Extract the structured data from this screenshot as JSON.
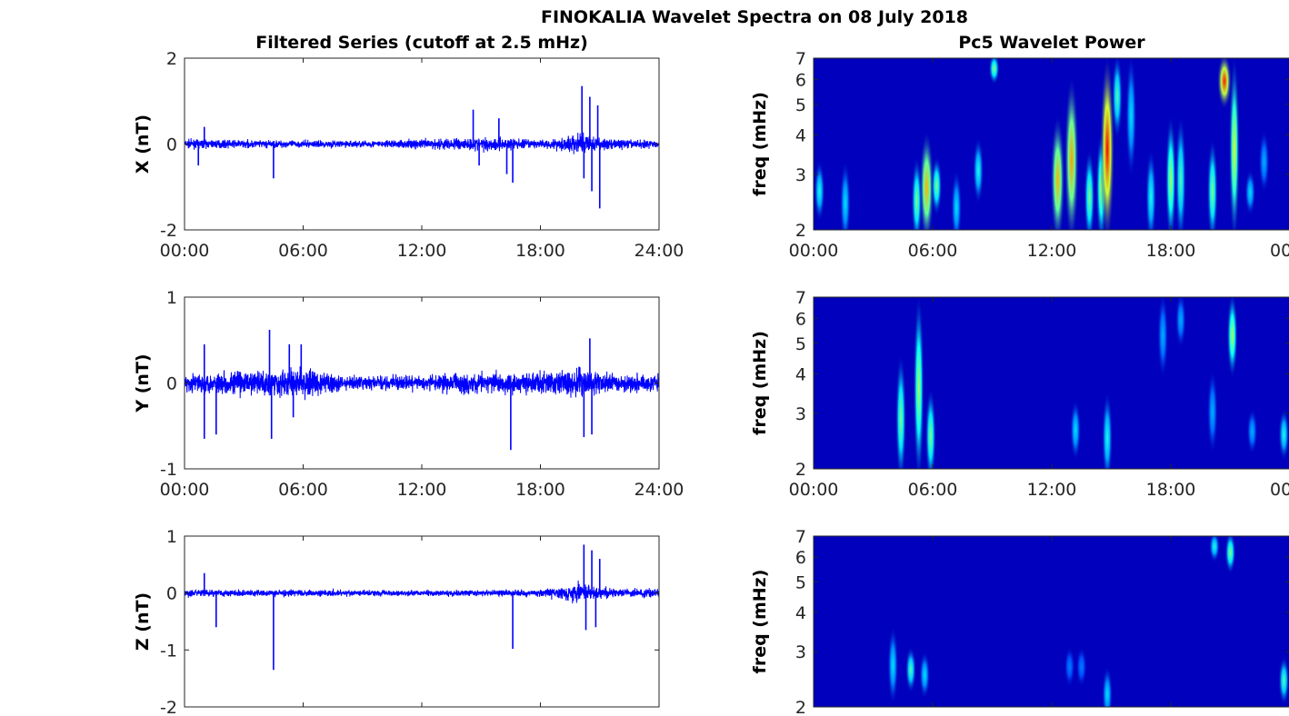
{
  "title": "FINOKALIA Wavelet Spectra on 08 July 2018",
  "chart_data": [
    {
      "type": "line",
      "title": "Filtered Series (cutoff at 2.5 mHz)",
      "ylabel": "X (nT)",
      "xlabel": "",
      "xlim": [
        0,
        24
      ],
      "ylim": [
        -2,
        2
      ],
      "xticks": [
        "00:00",
        "06:00",
        "12:00",
        "18:00",
        "24:00"
      ],
      "yticks": [
        "-2",
        "0",
        "2"
      ],
      "ytick_values": [
        -2,
        0,
        2
      ],
      "color": "#0000ff",
      "noise_envelope": [
        [
          0,
          0.12
        ],
        [
          6,
          0.1
        ],
        [
          10,
          0.1
        ],
        [
          14,
          0.18
        ],
        [
          16,
          0.2
        ],
        [
          18,
          0.1
        ],
        [
          20,
          0.3
        ],
        [
          21.5,
          0.15
        ],
        [
          24,
          0.1
        ]
      ],
      "spikes": [
        [
          0.7,
          -0.5
        ],
        [
          1,
          0.4
        ],
        [
          4.5,
          -0.8
        ],
        [
          14.6,
          0.8
        ],
        [
          14.9,
          -0.5
        ],
        [
          15.9,
          0.6
        ],
        [
          16.3,
          -0.7
        ],
        [
          16.6,
          -0.9
        ],
        [
          20.1,
          1.35
        ],
        [
          20.2,
          -0.8
        ],
        [
          20.5,
          1.1
        ],
        [
          20.6,
          -1.1
        ],
        [
          20.9,
          0.9
        ],
        [
          21,
          -1.5
        ]
      ]
    },
    {
      "type": "line",
      "ylabel": "Y (nT)",
      "xlabel": "",
      "xlim": [
        0,
        24
      ],
      "ylim": [
        -1,
        1
      ],
      "xticks": [
        "00:00",
        "06:00",
        "12:00",
        "18:00",
        "24:00"
      ],
      "yticks": [
        "-1",
        "0",
        "1"
      ],
      "ytick_values": [
        -1,
        0,
        1
      ],
      "color": "#0000ff",
      "noise_envelope": [
        [
          0,
          0.12
        ],
        [
          4,
          0.2
        ],
        [
          6.5,
          0.2
        ],
        [
          8,
          0.1
        ],
        [
          12,
          0.1
        ],
        [
          14,
          0.15
        ],
        [
          18,
          0.15
        ],
        [
          20,
          0.2
        ],
        [
          22,
          0.12
        ],
        [
          24,
          0.12
        ]
      ],
      "spikes": [
        [
          1,
          0.45
        ],
        [
          1,
          -0.65
        ],
        [
          1.6,
          -0.6
        ],
        [
          4.3,
          0.62
        ],
        [
          4.4,
          -0.65
        ],
        [
          5.3,
          0.45
        ],
        [
          5.5,
          -0.4
        ],
        [
          5.9,
          0.45
        ],
        [
          16.5,
          -0.78
        ],
        [
          20.2,
          -0.63
        ],
        [
          20.5,
          0.52
        ],
        [
          20.6,
          -0.6
        ]
      ]
    },
    {
      "type": "line",
      "ylabel": "Z (nT)",
      "xlabel": "",
      "xlim": [
        0,
        24
      ],
      "ylim": [
        -2,
        1
      ],
      "xticks": [],
      "yticks": [
        "-2",
        "-1",
        "0",
        "1"
      ],
      "ytick_values": [
        -2,
        -1,
        0,
        1
      ],
      "color": "#0000ff",
      "noise_envelope": [
        [
          0,
          0.08
        ],
        [
          6,
          0.07
        ],
        [
          12,
          0.06
        ],
        [
          18,
          0.07
        ],
        [
          20,
          0.2
        ],
        [
          21.5,
          0.1
        ],
        [
          24,
          0.08
        ]
      ],
      "spikes": [
        [
          1,
          0.35
        ],
        [
          1.6,
          -0.6
        ],
        [
          4.5,
          -1.35
        ],
        [
          16.6,
          -0.98
        ],
        [
          20.2,
          0.85
        ],
        [
          20.3,
          -0.65
        ],
        [
          20.6,
          0.75
        ],
        [
          20.8,
          -0.6
        ],
        [
          21,
          0.6
        ]
      ]
    },
    {
      "type": "heatmap",
      "title": "Pc5 Wavelet Power",
      "ylabel": "freq (mHz)",
      "yscale": "log",
      "xlim": [
        0,
        24
      ],
      "ylim": [
        2,
        7
      ],
      "xticks": [
        "00:00",
        "06:00",
        "12:00",
        "18:00",
        "00"
      ],
      "yticks": [
        "2",
        "3",
        "4",
        "5",
        "6",
        "7"
      ],
      "ytick_values": [
        2,
        3,
        4,
        5,
        6,
        7
      ],
      "colormap": "jet",
      "blobs": [
        [
          0.3,
          2.2,
          3.2,
          0.4
        ],
        [
          1.6,
          2,
          3.2,
          0.35
        ],
        [
          5.2,
          2,
          3.3,
          0.5
        ],
        [
          5.7,
          2,
          4,
          0.7
        ],
        [
          6.2,
          2.3,
          3.3,
          0.5
        ],
        [
          7.2,
          2,
          3,
          0.35
        ],
        [
          8.3,
          2.5,
          3.8,
          0.4
        ],
        [
          9.1,
          6,
          7,
          0.5
        ],
        [
          12.3,
          2,
          4.5,
          0.7
        ],
        [
          13,
          2,
          6,
          0.72
        ],
        [
          13.9,
          2,
          3.5,
          0.5
        ],
        [
          14.5,
          2,
          4,
          0.55
        ],
        [
          14.8,
          2,
          7,
          0.88
        ],
        [
          15.3,
          4,
          7,
          0.45
        ],
        [
          16,
          3,
          7,
          0.35
        ],
        [
          17,
          2,
          3.5,
          0.4
        ],
        [
          18,
          2,
          4.5,
          0.55
        ],
        [
          18.5,
          2,
          4.5,
          0.45
        ],
        [
          20.1,
          2,
          3.8,
          0.5
        ],
        [
          20.7,
          5,
          7,
          0.85
        ],
        [
          21.2,
          2,
          7,
          0.6
        ],
        [
          22,
          2.3,
          3,
          0.35
        ],
        [
          22.7,
          2.7,
          4,
          0.3
        ]
      ]
    },
    {
      "type": "heatmap",
      "ylabel": "freq (mHz)",
      "yscale": "log",
      "xlim": [
        0,
        24
      ],
      "ylim": [
        2,
        7
      ],
      "xticks": [
        "00:00",
        "06:00",
        "12:00",
        "18:00",
        "00"
      ],
      "yticks": [
        "2",
        "3",
        "4",
        "5",
        "6",
        "7"
      ],
      "ytick_values": [
        2,
        3,
        4,
        5,
        6,
        7
      ],
      "colormap": "jet",
      "blobs": [
        [
          4.4,
          2,
          4.5,
          0.5
        ],
        [
          5.3,
          2,
          7,
          0.55
        ],
        [
          5.9,
          2,
          3.5,
          0.5
        ],
        [
          13.2,
          2.2,
          3.2,
          0.35
        ],
        [
          14.8,
          2,
          3.4,
          0.4
        ],
        [
          17.6,
          4,
          7,
          0.3
        ],
        [
          18.5,
          5,
          7,
          0.3
        ],
        [
          20.1,
          2.3,
          4,
          0.3
        ],
        [
          21.1,
          4,
          7,
          0.55
        ],
        [
          22.1,
          2.3,
          3,
          0.3
        ],
        [
          23.7,
          2.2,
          3,
          0.4
        ]
      ]
    },
    {
      "type": "heatmap",
      "ylabel": "freq (mHz)",
      "yscale": "log",
      "xlim": [
        0,
        24
      ],
      "ylim": [
        2,
        7
      ],
      "xticks": [],
      "yticks": [
        "2",
        "3",
        "4",
        "5",
        "6",
        "7"
      ],
      "ytick_values": [
        2,
        3,
        4,
        5,
        6,
        7
      ],
      "colormap": "jet",
      "blobs": [
        [
          4,
          2.1,
          3.5,
          0.35
        ],
        [
          4.9,
          2.3,
          3,
          0.45
        ],
        [
          5.6,
          2.2,
          2.9,
          0.35
        ],
        [
          12.9,
          2.4,
          3,
          0.25
        ],
        [
          13.5,
          2.4,
          3,
          0.25
        ],
        [
          14.8,
          2,
          2.6,
          0.35
        ],
        [
          20.2,
          6,
          7,
          0.4
        ],
        [
          21,
          5.5,
          7,
          0.5
        ],
        [
          23.7,
          2.1,
          2.8,
          0.45
        ]
      ]
    }
  ]
}
